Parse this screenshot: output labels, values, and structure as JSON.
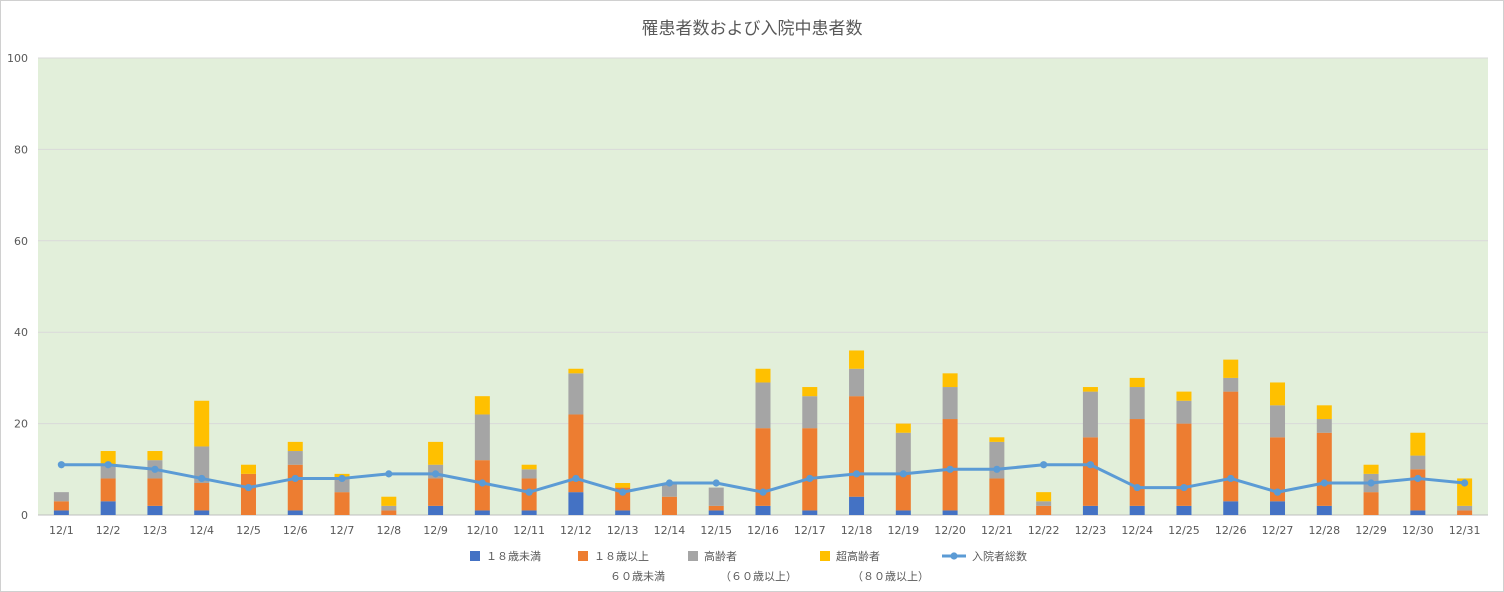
{
  "chart_data": {
    "type": "bar",
    "title": "罹患者数および入院中患者数",
    "ylim": [
      0,
      100
    ],
    "yticks": [
      0,
      20,
      40,
      60,
      80,
      100
    ],
    "grid": true,
    "legend_position": "bottom",
    "categories": [
      "12/1",
      "12/2",
      "12/3",
      "12/4",
      "12/5",
      "12/6",
      "12/7",
      "12/8",
      "12/9",
      "12/10",
      "12/11",
      "12/12",
      "12/13",
      "12/14",
      "12/15",
      "12/16",
      "12/17",
      "12/18",
      "12/19",
      "12/20",
      "12/21",
      "12/22",
      "12/23",
      "12/24",
      "12/25",
      "12/26",
      "12/27",
      "12/28",
      "12/29",
      "12/30",
      "12/31"
    ],
    "series": [
      {
        "name": "１８歳未満",
        "type": "bar",
        "color": "#4472c4",
        "values": [
          1,
          3,
          2,
          1,
          0,
          1,
          0,
          0,
          2,
          1,
          1,
          5,
          1,
          0,
          1,
          2,
          1,
          4,
          1,
          1,
          0,
          0,
          2,
          2,
          2,
          3,
          3,
          2,
          0,
          1,
          0
        ]
      },
      {
        "name": "１８歳以上 ６０歳未満",
        "type": "bar",
        "color": "#ed7d31",
        "values": [
          2,
          5,
          6,
          6,
          9,
          10,
          5,
          1,
          6,
          11,
          7,
          17,
          5,
          4,
          1,
          17,
          18,
          22,
          8,
          20,
          8,
          2,
          15,
          19,
          18,
          24,
          14,
          16,
          5,
          9,
          1
        ]
      },
      {
        "name": "高齢者 （６０歳以上）",
        "type": "bar",
        "color": "#a5a5a5",
        "values": [
          2,
          3,
          4,
          8,
          0,
          3,
          3,
          1,
          3,
          10,
          2,
          9,
          0,
          3,
          4,
          10,
          7,
          6,
          9,
          7,
          8,
          1,
          10,
          7,
          5,
          3,
          7,
          3,
          4,
          3,
          1
        ]
      },
      {
        "name": "超高齢者 （８０歳以上）",
        "type": "bar",
        "color": "#ffc000",
        "values": [
          0,
          3,
          2,
          10,
          2,
          2,
          1,
          2,
          5,
          4,
          1,
          1,
          1,
          0,
          0,
          3,
          2,
          4,
          2,
          3,
          1,
          2,
          1,
          2,
          2,
          4,
          5,
          3,
          2,
          5,
          6
        ]
      },
      {
        "name": "入院者総数",
        "type": "line",
        "color": "#5b9bd5",
        "values": [
          11,
          11,
          10,
          8,
          6,
          8,
          8,
          9,
          9,
          7,
          5,
          8,
          5,
          7,
          7,
          5,
          8,
          9,
          9,
          10,
          10,
          11,
          11,
          6,
          6,
          8,
          5,
          7,
          7,
          8,
          7
        ]
      }
    ],
    "legend": [
      {
        "line1": "１８歳未満",
        "line2": ""
      },
      {
        "line1": "１８歳以上",
        "line2": "６０歳未満"
      },
      {
        "line1": "高齢者",
        "line2": "（６０歳以上）"
      },
      {
        "line1": "超高齢者",
        "line2": "（８０歳以上）"
      },
      {
        "line1": "入院者総数",
        "line2": ""
      }
    ],
    "colors": {
      "plot_background": "#e2efda",
      "gridline": "#d9d9d9"
    }
  }
}
